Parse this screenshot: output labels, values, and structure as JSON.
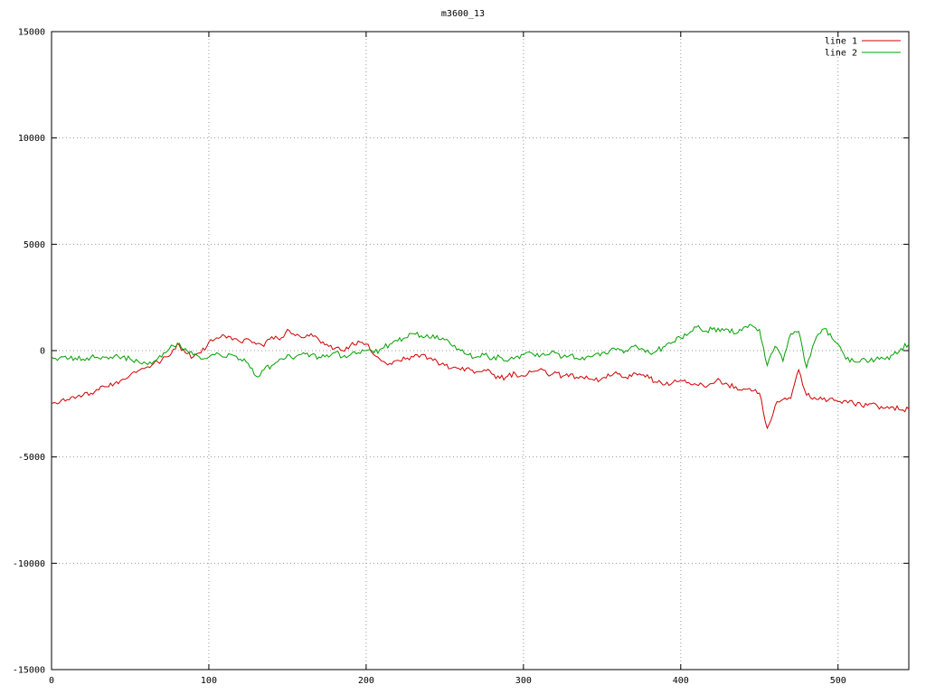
{
  "chart_data": {
    "type": "line",
    "title": "m3600_13",
    "xlabel": "",
    "ylabel": "",
    "xlim": [
      0,
      545
    ],
    "ylim": [
      -15000,
      15000
    ],
    "xticks": [
      0,
      100,
      200,
      300,
      400,
      500
    ],
    "yticks": [
      -15000,
      -10000,
      -5000,
      0,
      5000,
      10000,
      15000
    ],
    "grid": "dotted",
    "legend_position": "top-right",
    "x": {
      "start": 0,
      "step": 5
    },
    "series": [
      {
        "name": "line 1",
        "color": "#d00000",
        "values": [
          -2500,
          -2450,
          -2300,
          -2250,
          -2100,
          -2000,
          -1850,
          -1700,
          -1550,
          -1350,
          -1150,
          -950,
          -800,
          -600,
          -450,
          -250,
          350,
          -100,
          -300,
          -100,
          400,
          600,
          700,
          500,
          400,
          550,
          300,
          200,
          650,
          500,
          1000,
          700,
          600,
          800,
          500,
          300,
          100,
          0,
          250,
          450,
          300,
          -200,
          -500,
          -600,
          -450,
          -400,
          -300,
          -200,
          -350,
          -500,
          -700,
          -800,
          -900,
          -800,
          -1000,
          -900,
          -1100,
          -1300,
          -1200,
          -1100,
          -1200,
          -1000,
          -900,
          -1100,
          -1000,
          -1200,
          -1100,
          -1300,
          -1200,
          -1400,
          -1300,
          -1200,
          -1100,
          -1250,
          -1050,
          -1150,
          -1300,
          -1500,
          -1600,
          -1500,
          -1400,
          -1500,
          -1600,
          -1700,
          -1550,
          -1400,
          -1600,
          -1700,
          -1800,
          -1900,
          -2000,
          -3650,
          -2600,
          -2300,
          -2250,
          -900,
          -2100,
          -2200,
          -2300,
          -2250,
          -2400,
          -2350,
          -2500,
          -2600,
          -2500,
          -2600,
          -2700,
          -2650,
          -2800,
          -2750
        ]
      },
      {
        "name": "line 2",
        "color": "#00a000",
        "values": [
          -300,
          -350,
          -400,
          -350,
          -400,
          -300,
          -350,
          -300,
          -250,
          -300,
          -400,
          -500,
          -600,
          -500,
          -300,
          100,
          300,
          100,
          -200,
          -400,
          -300,
          -100,
          -300,
          -200,
          -400,
          -600,
          -1200,
          -900,
          -700,
          -400,
          -200,
          -300,
          -100,
          -200,
          -300,
          -200,
          -100,
          -300,
          -200,
          -100,
          0,
          -100,
          100,
          300,
          450,
          600,
          800,
          700,
          600,
          700,
          500,
          200,
          0,
          -200,
          -300,
          -200,
          -400,
          -300,
          -500,
          -300,
          -200,
          -100,
          -300,
          -200,
          -100,
          -300,
          -200,
          -400,
          -300,
          -200,
          -100,
          0,
          100,
          0,
          200,
          100,
          -100,
          0,
          200,
          400,
          600,
          800,
          1100,
          900,
          1000,
          900,
          1000,
          800,
          1100,
          1200,
          1000,
          -700,
          200,
          -500,
          800,
          900,
          -800,
          400,
          1000,
          800,
          300,
          -400,
          -500,
          -400,
          -500,
          -300,
          -400,
          -200,
          100,
          300
        ]
      }
    ]
  },
  "colors": {
    "background": "#ffffff",
    "axis": "#000000",
    "grid": "#9a9a9a"
  }
}
